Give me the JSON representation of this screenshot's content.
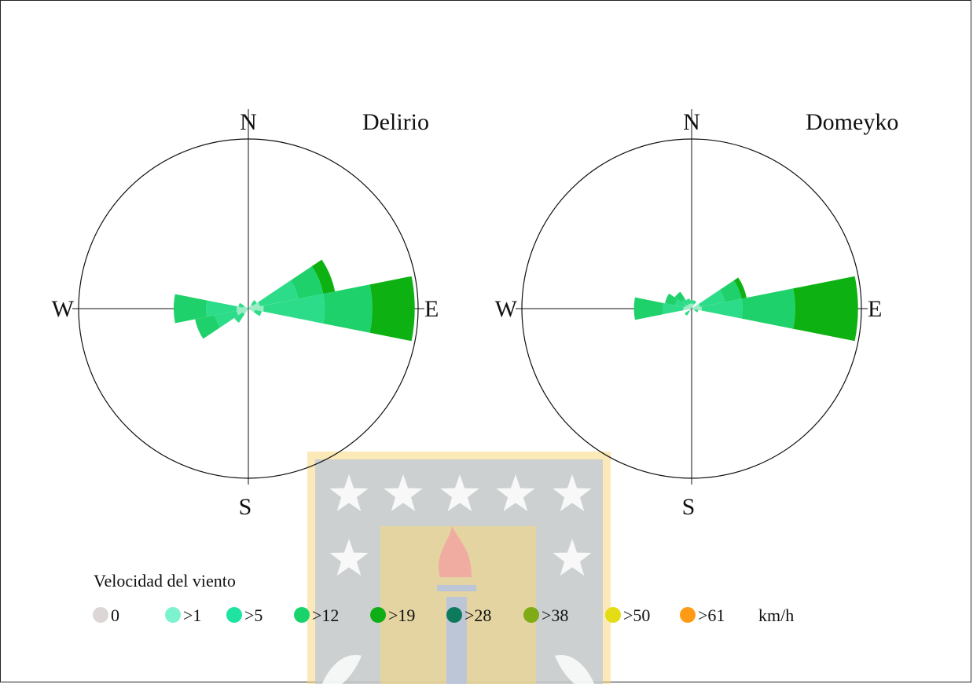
{
  "colors": {
    "speed_bins": [
      "#ddd6d6",
      "#7df2cf",
      "#1fe3a0",
      "#19d46c",
      "#0fae16",
      "#0d7a5e",
      "#7eab16",
      "#e4dc14",
      "#ff9a14"
    ],
    "petal_light": "#99ecc4",
    "petal_mid": "#2ddc88",
    "petal_green": "#1fd16a",
    "petal_dark": "#0db212",
    "watermark_blue": "#b8c4dc",
    "watermark_gold": "#f7d77c",
    "watermark_flame": "#f2a1a0"
  },
  "chart_data": [
    {
      "type": "windrose",
      "title": "Delirio",
      "compass": {
        "N": "N",
        "S": "S",
        "E": "E",
        "W": "W"
      },
      "sectors": [
        {
          "direction_deg": 90,
          "lengths": [
            0.09,
            0.45,
            0.73,
            0.98
          ]
        },
        {
          "direction_deg": 67.5,
          "lengths": [
            0.07,
            0.3,
            0.45,
            0.52
          ]
        },
        {
          "direction_deg": 270,
          "lengths": [
            0.07,
            0.25,
            0.44
          ]
        },
        {
          "direction_deg": 247.5,
          "lengths": [
            0.07,
            0.2,
            0.32
          ]
        },
        {
          "direction_deg": 225,
          "lengths": [
            0.04,
            0.1
          ]
        },
        {
          "direction_deg": 112.5,
          "lengths": [
            0.04,
            0.08
          ]
        },
        {
          "direction_deg": 292.5,
          "lengths": [
            0.03,
            0.06
          ]
        },
        {
          "direction_deg": 45,
          "lengths": [
            0.03,
            0.06
          ]
        }
      ]
    },
    {
      "type": "windrose",
      "title": "Domeyko",
      "compass": {
        "N": "N",
        "S": "S",
        "E": "E",
        "W": "W"
      },
      "sectors": [
        {
          "direction_deg": 90,
          "lengths": [
            0.06,
            0.3,
            0.61,
            0.98
          ]
        },
        {
          "direction_deg": 67.5,
          "lengths": [
            0.05,
            0.2,
            0.3,
            0.33
          ]
        },
        {
          "direction_deg": 270,
          "lengths": [
            0.05,
            0.17,
            0.34
          ]
        },
        {
          "direction_deg": 292.5,
          "lengths": [
            0.04,
            0.1,
            0.16
          ]
        },
        {
          "direction_deg": 315,
          "lengths": [
            0.03,
            0.07,
            0.12
          ]
        },
        {
          "direction_deg": 337.5,
          "lengths": [
            0.03,
            0.06
          ]
        },
        {
          "direction_deg": 0,
          "lengths": [
            0.03,
            0.05
          ]
        },
        {
          "direction_deg": 22.5,
          "lengths": [
            0.03,
            0.05
          ]
        },
        {
          "direction_deg": 225,
          "lengths": [
            0.02,
            0.05
          ]
        },
        {
          "direction_deg": 112.5,
          "lengths": [
            0.02,
            0.04
          ]
        }
      ]
    }
  ],
  "legend": {
    "title": "Velocidad del viento",
    "unit": "km/h",
    "items": [
      {
        "label": "0",
        "color": "#ddd6d6"
      },
      {
        "label": ">1",
        "color": "#7df2cf"
      },
      {
        "label": ">5",
        "color": "#1fe3a0"
      },
      {
        "label": ">12",
        "color": "#19d46c"
      },
      {
        "label": ">19",
        "color": "#0fae16"
      },
      {
        "label": ">28",
        "color": "#0d7a5e"
      },
      {
        "label": ">38",
        "color": "#7eab16"
      },
      {
        "label": ">50",
        "color": "#e4dc14"
      },
      {
        "label": ">61",
        "color": "#ff9a14"
      }
    ]
  }
}
